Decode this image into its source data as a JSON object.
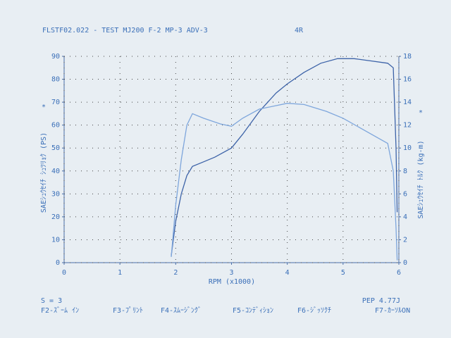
{
  "chart_data": {
    "type": "line",
    "title": "FLSTF02.022 - TEST MJ200 F-2 MP-3 ADV-3",
    "subtitle": "4R",
    "xlabel": "RPM (x1000)",
    "ylabel": "SAEｼｭｳｾｲﾁ ｼｭﾂﾘｮｸ (PS)",
    "y2label": "SAEｼｭｳｾｲﾁ ﾄﾙｸ (kg-m)",
    "y_marker": "*",
    "y2_marker": "*",
    "xlim": [
      0,
      6
    ],
    "xticks": [
      0,
      1,
      2,
      3,
      4,
      5,
      6
    ],
    "ylim": [
      0,
      90
    ],
    "yticks": [
      0,
      10,
      20,
      30,
      40,
      50,
      60,
      70,
      80,
      90
    ],
    "y2lim": [
      0,
      18
    ],
    "y2ticks": [
      0,
      2,
      4,
      6,
      8,
      10,
      12,
      14,
      16,
      18
    ],
    "grid": true,
    "series": [
      {
        "name": "PS",
        "color": "#3d63a8",
        "x": [
          1.92,
          2.0,
          2.1,
          2.2,
          2.3,
          2.5,
          2.7,
          3.0,
          3.2,
          3.5,
          3.8,
          4.0,
          4.3,
          4.6,
          4.9,
          5.2,
          5.5,
          5.8,
          5.9,
          5.95,
          5.97
        ],
        "values": [
          3,
          18,
          30,
          38,
          42,
          44,
          46,
          50,
          56,
          66,
          74,
          78,
          83,
          87,
          89,
          89,
          88,
          87,
          85,
          50,
          22
        ]
      },
      {
        "name": "kg-m",
        "color": "#7ea6dc",
        "axis": "y2",
        "x": [
          1.92,
          2.0,
          2.1,
          2.2,
          2.3,
          2.5,
          2.8,
          3.0,
          3.2,
          3.5,
          4.0,
          4.3,
          4.7,
          5.0,
          5.4,
          5.8,
          5.9,
          5.95,
          5.97
        ],
        "values": [
          0.5,
          5,
          9,
          12,
          13,
          12.6,
          12.1,
          11.9,
          12.6,
          13.4,
          13.9,
          13.8,
          13.2,
          12.6,
          11.5,
          10.4,
          8,
          3,
          0.2
        ]
      }
    ]
  },
  "footer": {
    "status_left": "S = 3",
    "status_right": "PEP 4.77J",
    "keys": [
      "F2-ｽﾞｰﾑ ｲﾝ",
      "F3-ﾌﾟﾘﾝﾄ",
      "F4-ｽﾑｰｼﾞﾝｸﾞ",
      "F5-ｺﾝﾃﾞｨｼｮﾝ",
      "F6-ｼﾞｯｿｸﾁ",
      "F7-ｶｰｿﾙON"
    ]
  }
}
